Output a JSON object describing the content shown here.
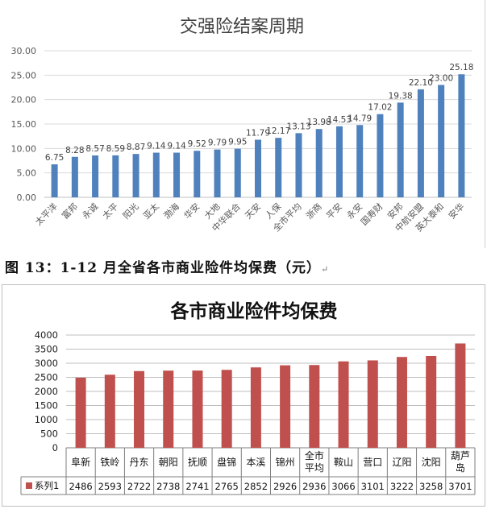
{
  "caption": {
    "text": "图 13：1-12 月全省各市商业险件均保费（元）"
  },
  "chart_data": [
    {
      "type": "bar",
      "title": "交强险结案周期",
      "categories": [
        "太平洋",
        "富邦",
        "永诚",
        "太平",
        "阳光",
        "亚太",
        "渤海",
        "华安",
        "大地",
        "中华联合",
        "天安",
        "人保",
        "全市平均",
        "浙商",
        "平安",
        "永安",
        "国寿财",
        "安邦",
        "中航安盟",
        "英大泰和",
        "安华"
      ],
      "values": [
        6.75,
        8.28,
        8.57,
        8.59,
        8.87,
        9.14,
        9.14,
        9.52,
        9.79,
        9.95,
        11.79,
        12.17,
        13.13,
        13.98,
        14.53,
        14.79,
        17.02,
        19.38,
        22.1,
        23.0,
        25.18
      ],
      "ylim": [
        0,
        30
      ],
      "yticks": [
        "0.00",
        "5.00",
        "10.00",
        "15.00",
        "20.00",
        "25.00",
        "30.00"
      ],
      "grid": true,
      "color": "#4f81bd"
    },
    {
      "type": "bar",
      "title": "各市商业险件均保费",
      "categories": [
        "阜新",
        "铁岭",
        "丹东",
        "朝阳",
        "抚顺",
        "盘锦",
        "本溪",
        "锦州",
        "全市平均",
        "鞍山",
        "营口",
        "辽阳",
        "沈阳",
        "葫芦岛"
      ],
      "series": [
        {
          "name": "系列1",
          "values": [
            2486,
            2593,
            2722,
            2738,
            2741,
            2765,
            2852,
            2926,
            2936,
            3066,
            3101,
            3222,
            3258,
            3701
          ]
        }
      ],
      "ylim": [
        0,
        4000
      ],
      "yticks": [
        "0",
        "500",
        "1000",
        "1500",
        "2000",
        "2500",
        "3000",
        "3500",
        "4000"
      ],
      "grid": true,
      "data_table": true,
      "color": "#c0504d"
    }
  ]
}
